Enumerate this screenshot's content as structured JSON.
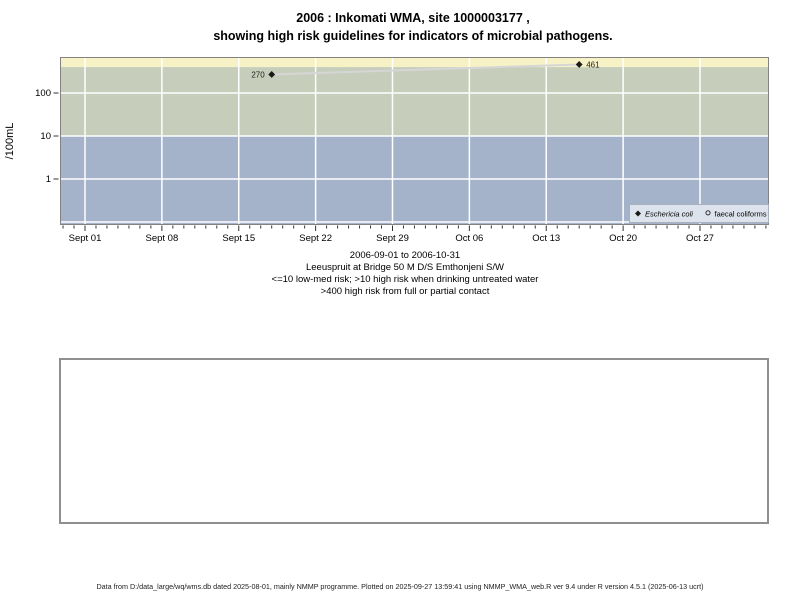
{
  "title": {
    "line1": "2006 : Inkomati WMA, site 1000003177 ,",
    "line2": "showing high risk guidelines for indicators of microbial pathogens."
  },
  "chart_data": {
    "type": "line",
    "title": "2006 : Inkomati WMA, site 1000003177 , showing high risk guidelines for indicators of microbial pathogens.",
    "ylabel": "/100mL",
    "y_scale": "log10",
    "ylim": [
      0.085,
      690
    ],
    "y_ticks": [
      "100",
      "10",
      "1"
    ],
    "y_tick_values": [
      100,
      10,
      1
    ],
    "y_gridline_values": [
      100,
      10,
      1,
      0.1
    ],
    "x_start_date": "2006-09-01",
    "x_tick_interval_days": 7,
    "x_minor_tick_interval_days": 1,
    "x_tick_labels": [
      "Sept 01",
      "Sept 08",
      "Sept 15",
      "Sept 22",
      "Sept 29",
      "Oct 06",
      "Oct 13",
      "Oct 20",
      "Oct 27"
    ],
    "grid": true,
    "legend_position": "bottom-right",
    "legend_background": "#dde3ed",
    "risk_bands": [
      {
        "name": "above-400",
        "min": 400,
        "max": 690,
        "color": "#f7f2c6"
      },
      {
        "name": "10-to-400",
        "min": 10,
        "max": 400,
        "color": "#c6cdba"
      },
      {
        "name": "below-10",
        "min": 0.085,
        "max": 10,
        "color": "#a4b2ca"
      }
    ],
    "series": [
      {
        "name": "Eschericia coli",
        "italic": true,
        "marker": "filled-diamond",
        "marker_color": "#1a1a1a",
        "line_color": "#d6d6d6",
        "points": [
          {
            "date": "2006-09-18",
            "value": 270,
            "label": "270",
            "label_side": "left"
          },
          {
            "date": "2006-10-16",
            "value": 461,
            "label": "461",
            "label_side": "right"
          }
        ]
      },
      {
        "name": "faecal coliforms",
        "italic": false,
        "marker": "open-circle",
        "marker_color": "#333333",
        "line_color": "#d6d6d6",
        "points": []
      }
    ]
  },
  "caption": {
    "lines": [
      "2006-09-01 to 2006-10-31",
      "Leeuspruit at Bridge 50 M D/S Emthonjeni S/W",
      "<=10 low-med risk; >10 high risk when drinking untreated water",
      ">400 high risk from full or partial contact"
    ]
  },
  "footer": {
    "text": "Data from D:/data_large/wq/wms.db dated 2025-08-01, mainly NMMP programme. Plotted on 2025-09-27 13:59:41 using NMMP_WMA_web.R ver 9.4 under R version 4.5.1 (2025-06-13 ucrt)"
  }
}
